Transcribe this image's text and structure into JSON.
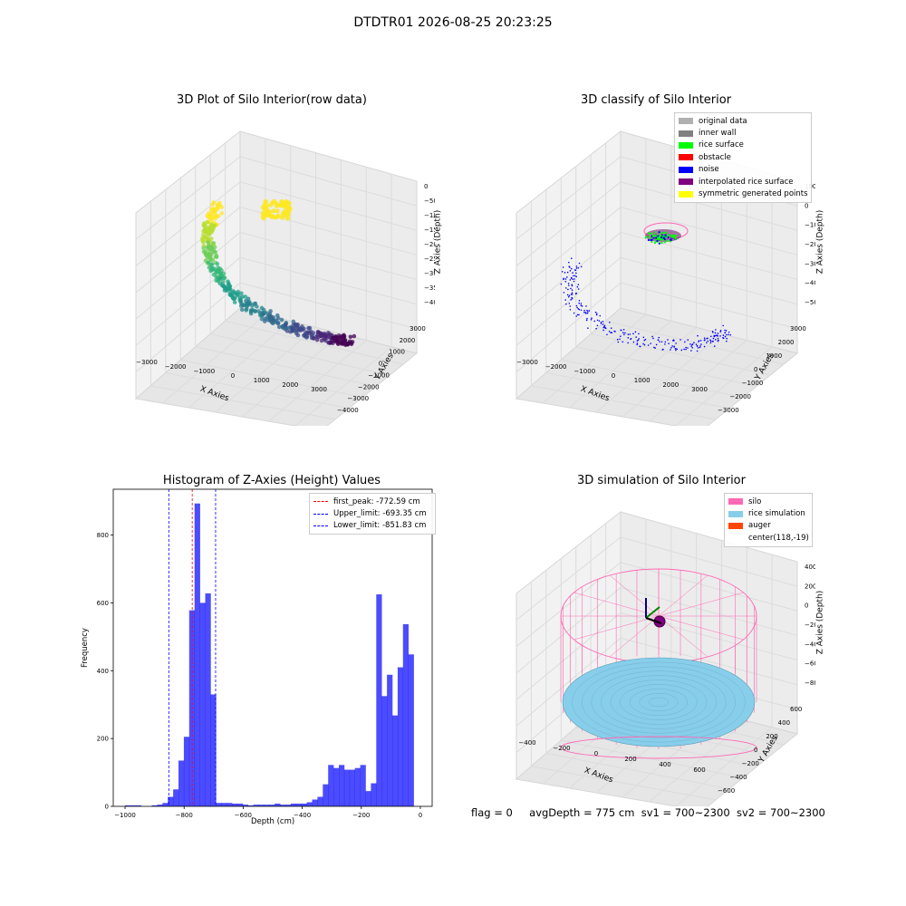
{
  "suptitle": "DTDTR01 2026-08-25 20:23:25",
  "panels": {
    "p1": {
      "title": "3D Plot of Silo Interior(row data)",
      "xlabel": "X Axies",
      "ylabel": "Y Axies",
      "zlabel": "Z Axies (Depth)",
      "xticks": [
        "−3000",
        "−2000",
        "−1000",
        "0",
        "1000",
        "2000",
        "3000"
      ],
      "yticks": [
        "−4000",
        "−3000",
        "−2000",
        "−1000",
        "0",
        "1000",
        "2000",
        "3000"
      ],
      "zticks": [
        "0",
        "−500",
        "−1000",
        "−1500",
        "−2000",
        "−2500",
        "−3000",
        "−3500",
        "−4000"
      ]
    },
    "p2": {
      "title": "3D classify of Silo Interior",
      "xlabel": "X Axies",
      "ylabel": "Y Axies",
      "zlabel": "Z Axies (Depth)",
      "xticks": [
        "−3000",
        "−2000",
        "−1000",
        "0",
        "1000",
        "2000",
        "3000"
      ],
      "yticks": [
        "−3000",
        "−2000",
        "−1000",
        "0",
        "1000",
        "2000",
        "3000"
      ],
      "zticks": [
        "1000",
        "0",
        "−1000",
        "−2000",
        "−3000",
        "−4000",
        "−5000"
      ],
      "legend": [
        {
          "label": "original data",
          "color": "#b0b0b0"
        },
        {
          "label": "inner wall",
          "color": "#808080"
        },
        {
          "label": "rice surface",
          "color": "#00ff00"
        },
        {
          "label": "obstacle",
          "color": "#ff0000"
        },
        {
          "label": "noise",
          "color": "#0000ff"
        },
        {
          "label": "interpolated rice surface",
          "color": "#800080"
        },
        {
          "label": "symmetric generated points",
          "color": "#ffff00"
        }
      ]
    },
    "p4": {
      "title": "3D simulation of Silo Interior",
      "xlabel": "X Axies",
      "ylabel": "Y Axies",
      "zlabel": "Z Axies (Depth)",
      "xticks": [
        "−400",
        "−200",
        "0",
        "200",
        "400",
        "600"
      ],
      "yticks": [
        "−600",
        "−400",
        "−200",
        "0",
        "200",
        "400",
        "600"
      ],
      "zticks": [
        "400",
        "200",
        "0",
        "−200",
        "−400",
        "−600",
        "−800"
      ],
      "legend": [
        {
          "label": "silo",
          "color": "#ff69b4"
        },
        {
          "label": "rice simulation",
          "color": "#87ceeb"
        },
        {
          "label": "auger",
          "color": "#ff4500"
        },
        {
          "label": "center(118,-19)",
          "color": ""
        }
      ]
    }
  },
  "chart_data": {
    "type": "bar",
    "title": "Histogram of Z-Axies (Height) Values",
    "xlabel": "Depth (cm)",
    "ylabel": "Frequency",
    "xlim": [
      -1040,
      40
    ],
    "ylim": [
      0,
      935
    ],
    "bar_color": "#0000ff",
    "xticks": [
      {
        "v": -1000,
        "t": "−1000"
      },
      {
        "v": -800,
        "t": "−800"
      },
      {
        "v": -600,
        "t": "−600"
      },
      {
        "v": -400,
        "t": "−400"
      },
      {
        "v": -200,
        "t": "−200"
      },
      {
        "v": 0,
        "t": "0"
      }
    ],
    "yticks": [
      {
        "v": 0,
        "t": "0"
      },
      {
        "v": 200,
        "t": "200"
      },
      {
        "v": 400,
        "t": "400"
      },
      {
        "v": 600,
        "t": "600"
      },
      {
        "v": 800,
        "t": "800"
      }
    ],
    "bin_start": -1000,
    "bin_width": 18.1,
    "values": [
      3,
      3,
      3,
      0,
      0,
      3,
      5,
      10,
      28,
      50,
      135,
      205,
      578,
      893,
      600,
      628,
      330,
      10,
      10,
      10,
      8,
      8,
      5,
      3,
      5,
      5,
      5,
      5,
      8,
      5,
      5,
      8,
      8,
      8,
      12,
      20,
      28,
      65,
      122,
      113,
      122,
      108,
      108,
      113,
      122,
      45,
      68,
      625,
      325,
      388,
      268,
      410,
      537,
      448
    ],
    "vlines": [
      {
        "x": -772.59,
        "label": "first_peak: -772.59 cm",
        "color": "#ff0000"
      },
      {
        "x": -693.35,
        "label": "Upper_limit: -693.35 cm",
        "color": "#0000ff"
      },
      {
        "x": -851.83,
        "label": "Lower_limit: -851.83 cm",
        "color": "#0000ff"
      }
    ]
  },
  "status": {
    "flag": "flag = 0",
    "avg": "avgDepth = 775 cm",
    "sv1": "sv1 = 700~2300",
    "sv2": "sv2 = 700~2300"
  }
}
